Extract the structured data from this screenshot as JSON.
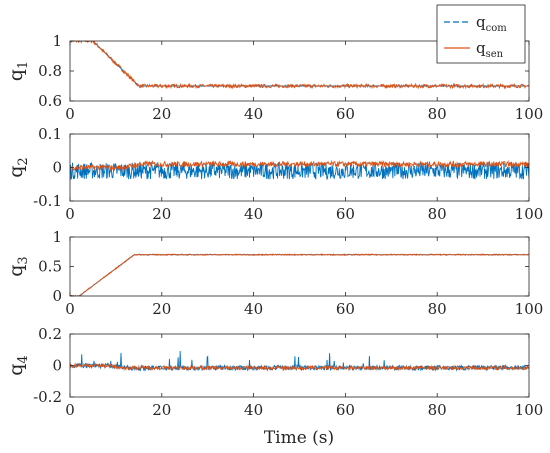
{
  "chart_data": {
    "type": "line",
    "xlabel": "Time (s)",
    "xlim": [
      0,
      100
    ],
    "x_ticks": [
      "0",
      "20",
      "40",
      "60",
      "80",
      "100"
    ],
    "legend": {
      "placement": "top-right",
      "entries": [
        {
          "base": "q",
          "sub": "com",
          "color": "#0072BD",
          "style": "dashed"
        },
        {
          "base": "q",
          "sub": "sen",
          "color": "#D95319",
          "style": "solid"
        }
      ]
    },
    "panels": [
      {
        "ylabel": {
          "base": "q",
          "sub": "1"
        },
        "ylim": [
          0.6,
          1.0
        ],
        "y_ticks": [
          {
            "v": 1.0,
            "t": "1"
          },
          {
            "v": 0.8,
            "t": "0.8"
          },
          {
            "v": 0.6,
            "t": "0.6"
          }
        ],
        "series": [
          {
            "key": "q_com",
            "color": "#0072BD",
            "shape": [
              [
                0,
                1.0
              ],
              [
                5,
                1.0
              ],
              [
                10,
                0.85
              ],
              [
                15,
                0.7
              ],
              [
                100,
                0.7
              ]
            ],
            "noise": 0.0
          },
          {
            "key": "q_sen",
            "color": "#D95319",
            "shape": [
              [
                0,
                1.0
              ],
              [
                5,
                1.0
              ],
              [
                10,
                0.85
              ],
              [
                15,
                0.7
              ],
              [
                100,
                0.7
              ]
            ],
            "noise": 0.012
          }
        ]
      },
      {
        "ylabel": {
          "base": "q",
          "sub": "2"
        },
        "ylim": [
          -0.1,
          0.1
        ],
        "y_ticks": [
          {
            "v": 0.1,
            "t": "0.1"
          },
          {
            "v": 0.0,
            "t": "0"
          },
          {
            "v": -0.1,
            "t": "-0.1"
          }
        ],
        "series": [
          {
            "key": "q_com",
            "color": "#0072BD",
            "shape": [
              [
                0,
                -0.01
              ],
              [
                100,
                -0.01
              ]
            ],
            "noise": 0.025
          },
          {
            "key": "q_sen",
            "color": "#D95319",
            "shape": [
              [
                0,
                0.0
              ],
              [
                12,
                0.0
              ],
              [
                15,
                0.01
              ],
              [
                100,
                0.01
              ]
            ],
            "noise": 0.008
          }
        ]
      },
      {
        "ylabel": {
          "base": "q",
          "sub": "3"
        },
        "ylim": [
          0.0,
          1.0
        ],
        "y_ticks": [
          {
            "v": 1.0,
            "t": "1"
          },
          {
            "v": 0.5,
            "t": "0.5"
          },
          {
            "v": 0.0,
            "t": "0"
          }
        ],
        "series": [
          {
            "key": "q_com",
            "color": "#0072BD",
            "shape": [
              [
                0,
                0.0
              ],
              [
                2,
                0.0
              ],
              [
                14,
                0.7
              ],
              [
                100,
                0.7
              ]
            ],
            "noise": 0.0
          },
          {
            "key": "q_sen",
            "color": "#D95319",
            "shape": [
              [
                0,
                0.0
              ],
              [
                2,
                0.0
              ],
              [
                14,
                0.7
              ],
              [
                100,
                0.7
              ]
            ],
            "noise": 0.01
          }
        ]
      },
      {
        "ylabel": {
          "base": "q",
          "sub": "4"
        },
        "ylim": [
          -0.2,
          0.2
        ],
        "y_ticks": [
          {
            "v": 0.2,
            "t": "0.2"
          },
          {
            "v": 0.0,
            "t": "0"
          },
          {
            "v": -0.2,
            "t": "-0.2"
          }
        ],
        "series": [
          {
            "key": "q_com",
            "color": "#0072BD",
            "shape": [
              [
                0,
                0.0
              ],
              [
                8,
                0.0
              ],
              [
                12,
                -0.015
              ],
              [
                100,
                -0.015
              ]
            ],
            "noise": 0.015,
            "spike": 0.17
          },
          {
            "key": "q_sen",
            "color": "#D95319",
            "shape": [
              [
                0,
                0.0
              ],
              [
                8,
                0.0
              ],
              [
                12,
                -0.015
              ],
              [
                100,
                -0.015
              ]
            ],
            "noise": 0.012
          }
        ]
      }
    ]
  }
}
